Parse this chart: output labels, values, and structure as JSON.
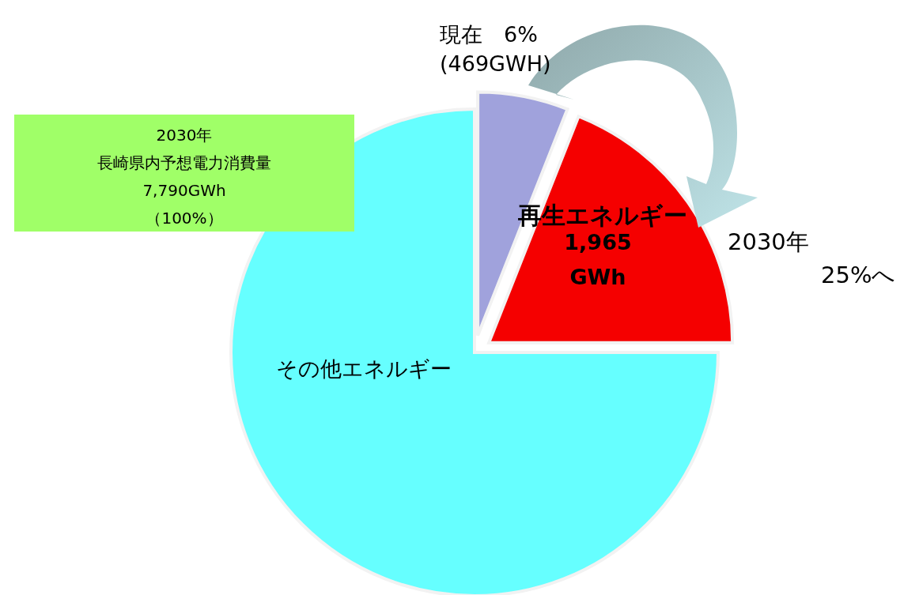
{
  "chart_data": {
    "type": "pie",
    "categories": [
      null,
      "再生エネルギー",
      "その他エネルギー"
    ],
    "values": [
      6,
      19,
      75
    ],
    "colors": [
      "#a0a2dc",
      "#f50000",
      "#66ffff"
    ],
    "annotations": [
      "現在　6%",
      "(469GWH)",
      "1,965",
      "GWh",
      "2030年",
      "長崎県内予想電力消費量",
      "7,790GWh",
      "（100%）",
      "2030年",
      "25%へ"
    ]
  }
}
